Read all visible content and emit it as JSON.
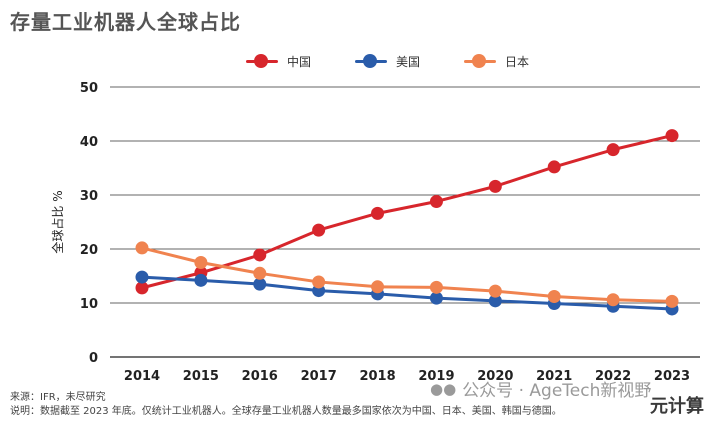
{
  "title": "存量工业机器人全球占比",
  "chart_data": {
    "type": "line",
    "title": "存量工业机器人全球占比",
    "ylabel": "全球占比 %",
    "xlabel": "",
    "ylim": [
      0,
      50
    ],
    "yticks": [
      0,
      10,
      20,
      30,
      40,
      50
    ],
    "x": [
      "2014",
      "2015",
      "2016",
      "2017",
      "2018",
      "2019",
      "2020",
      "2021",
      "2022",
      "2023"
    ],
    "grid": true,
    "legend_position": "top-center",
    "series": [
      {
        "name": "中国",
        "color": "#d7262c",
        "values": [
          12.8,
          15.6,
          18.9,
          23.5,
          26.6,
          28.8,
          31.6,
          35.2,
          38.4,
          41.0
        ]
      },
      {
        "name": "美国",
        "color": "#2a5caa",
        "values": [
          14.8,
          14.2,
          13.5,
          12.3,
          11.7,
          10.9,
          10.4,
          9.9,
          9.4,
          8.9
        ]
      },
      {
        "name": "日本",
        "color": "#f0834f",
        "values": [
          20.2,
          17.5,
          15.5,
          13.9,
          13.0,
          12.9,
          12.2,
          11.2,
          10.6,
          10.3
        ]
      }
    ]
  },
  "footer": {
    "source": "来源：IFR，未尽研究",
    "note": "说明：数据截至 2023 年底。仅统计工业机器人。全球存量工业机器人数量最多国家依次为中国、日本、美国、韩国与德国。"
  },
  "watermark": {
    "icon": "wechat-icon",
    "text": "公众号 · AgeTech新视野"
  },
  "brand": "元计算"
}
